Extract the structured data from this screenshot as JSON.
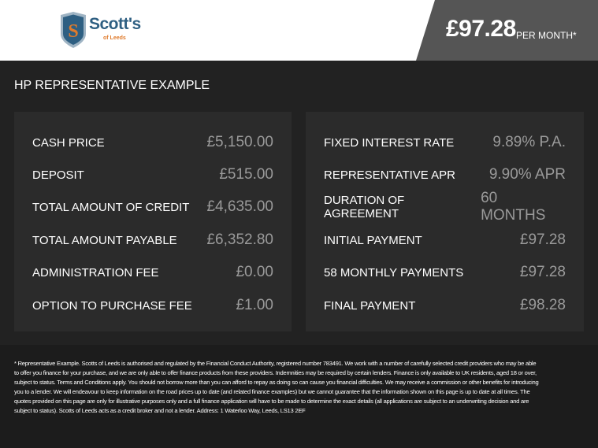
{
  "header": {
    "logo_text": "Scott's",
    "logo_sub": "of Leeds",
    "price": "£97.28",
    "per_month": "PER MONTH*"
  },
  "title": "HP REPRESENTATIVE EXAMPLE",
  "left": [
    {
      "label": "CASH PRICE",
      "value": "£5,150.00"
    },
    {
      "label": "DEPOSIT",
      "value": "£515.00"
    },
    {
      "label": "TOTAL AMOUNT OF CREDIT",
      "value": "£4,635.00"
    },
    {
      "label": "TOTAL AMOUNT PAYABLE",
      "value": "£6,352.80"
    },
    {
      "label": "ADMINISTRATION FEE",
      "value": "£0.00"
    },
    {
      "label": "OPTION TO PURCHASE FEE",
      "value": "£1.00"
    }
  ],
  "right": [
    {
      "label": "FIXED INTEREST RATE",
      "value": "9.89% P.A."
    },
    {
      "label": "REPRESENTATIVE APR",
      "value": "9.90% APR"
    },
    {
      "label": "DURATION OF AGREEMENT",
      "value": "60 MONTHS"
    },
    {
      "label": "INITIAL PAYMENT",
      "value": "£97.28"
    },
    {
      "label": "58 MONTHLY PAYMENTS",
      "value": "£97.28"
    },
    {
      "label": "FINAL PAYMENT",
      "value": "£98.28"
    }
  ],
  "disclaimer": "* Representative Example. Scotts of Leeds is authorised and regulated by the Financial Conduct Authority, registered number 783491. We work with a number of carefully selected credit providers who may be able to offer you finance for your purchase, and we are only able to offer finance products from these providers. Indemnities may be required by certain lenders. Finance is only available to UK residents, aged 18 or over, subject to status. Terms and Conditions apply. You should not borrow more than you can afford to repay as doing so can cause you financial difficulties. We may receive a commission or other benefits for introducing you to a lender. We will endeavour to keep information on the road prices up to date (and related finance examples) but we cannot guarantee that the information shown on this page is up to date at all times. The quotes provided on this page are only for illustrative purposes only and a full finance application will have to be made to determine the exact details (all applications are subject to an underwriting decision and are subject to status). Scotts of Leeds acts as a credit broker and not a lender. Address: 1 Waterloo Way, Leeds, LS13 2EF"
}
